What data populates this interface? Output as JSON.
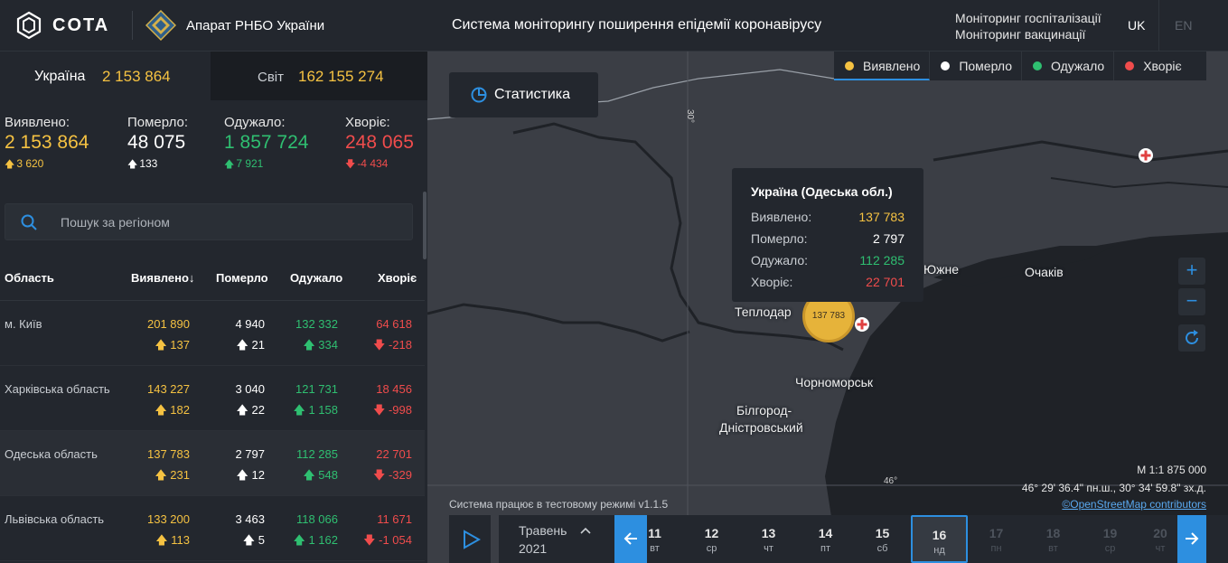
{
  "header": {
    "logo_text": "COTA",
    "org_name": "Апарат РНБО України",
    "system_title": "Система моніторингу поширення епідемії коронавірусу",
    "links": [
      "Моніторинг госпіталізації",
      "Моніторинг вакцинації"
    ],
    "lang_active": "UK",
    "lang_other": "EN"
  },
  "tabs": {
    "ukraine_label": "Україна",
    "ukraine_value": "2 153 864",
    "world_label": "Світ",
    "world_value": "162 155 274"
  },
  "summary": {
    "detected": {
      "label": "Виявлено:",
      "value": "2 153 864",
      "delta": "3 620"
    },
    "died": {
      "label": "Померло:",
      "value": "48 075",
      "delta": "133"
    },
    "recovered": {
      "label": "Одужало:",
      "value": "1 857 724",
      "delta": "7 921"
    },
    "sick": {
      "label": "Хворіє:",
      "value": "248 065",
      "delta": "-4 434"
    }
  },
  "search": {
    "placeholder": "Пошук за регіоном"
  },
  "table": {
    "headers": {
      "region": "Область",
      "detected": "Виявлено",
      "died": "Померло",
      "recovered": "Одужало",
      "sick": "Хворіє"
    },
    "rows": [
      {
        "name": "м. Київ",
        "detected": "201 890",
        "detected_d": "137",
        "died": "4 940",
        "died_d": "21",
        "recovered": "132 332",
        "recovered_d": "334",
        "sick": "64 618",
        "sick_d": "-218"
      },
      {
        "name": "Харківська область",
        "detected": "143 227",
        "detected_d": "182",
        "died": "3 040",
        "died_d": "22",
        "recovered": "121 731",
        "recovered_d": "1 158",
        "sick": "18 456",
        "sick_d": "-998"
      },
      {
        "name": "Одеська область",
        "detected": "137 783",
        "detected_d": "231",
        "died": "2 797",
        "died_d": "12",
        "recovered": "112 285",
        "recovered_d": "548",
        "sick": "22 701",
        "sick_d": "-329"
      },
      {
        "name": "Львівська область",
        "detected": "133 200",
        "detected_d": "113",
        "died": "3 463",
        "died_d": "5",
        "recovered": "118 066",
        "recovered_d": "1 162",
        "sick": "11 671",
        "sick_d": "-1 054"
      }
    ]
  },
  "map": {
    "stat_button": "Статистика",
    "legend": [
      {
        "label": "Виявлено",
        "color": "#f5c242"
      },
      {
        "label": "Померло",
        "color": "#ffffff"
      },
      {
        "label": "Одужало",
        "color": "#2fbf71"
      },
      {
        "label": "Хворіє",
        "color": "#f04c4c"
      }
    ],
    "tooltip": {
      "title": "Україна (Одеська обл.)",
      "detected_label": "Виявлено:",
      "detected": "137 783",
      "died_label": "Померло:",
      "died": "2 797",
      "recovered_label": "Одужало:",
      "recovered": "112 285",
      "sick_label": "Хворіє:",
      "sick": "22 701"
    },
    "cluster_value": "137 783",
    "places": {
      "teplodar": "Теплодар",
      "yuzhne": "Южне",
      "ochakiv": "Очаків",
      "chornomorsk": "Чорноморськ",
      "bilhorod_1": "Білгород-",
      "bilhorod_2": "Дністровський"
    },
    "grid": {
      "lon": "30°",
      "lat": "46°"
    },
    "scale": "М 1:1 875 000",
    "coords": "46° 29' 36.4\" пн.ш., 30° 34' 59.8\" зх.д.",
    "osm": "©OpenStreetMap contributors",
    "test_mode": "Система працює в тестовому режимі v1.1.5"
  },
  "timeline": {
    "month": "Травень",
    "year": "2021",
    "days": [
      {
        "n": "11",
        "w": "вт"
      },
      {
        "n": "12",
        "w": "ср"
      },
      {
        "n": "13",
        "w": "чт"
      },
      {
        "n": "14",
        "w": "пт"
      },
      {
        "n": "15",
        "w": "сб"
      },
      {
        "n": "16",
        "w": "нд"
      },
      {
        "n": "17",
        "w": "пн"
      },
      {
        "n": "18",
        "w": "вт"
      },
      {
        "n": "19",
        "w": "ср"
      },
      {
        "n": "20",
        "w": "чт"
      }
    ]
  }
}
